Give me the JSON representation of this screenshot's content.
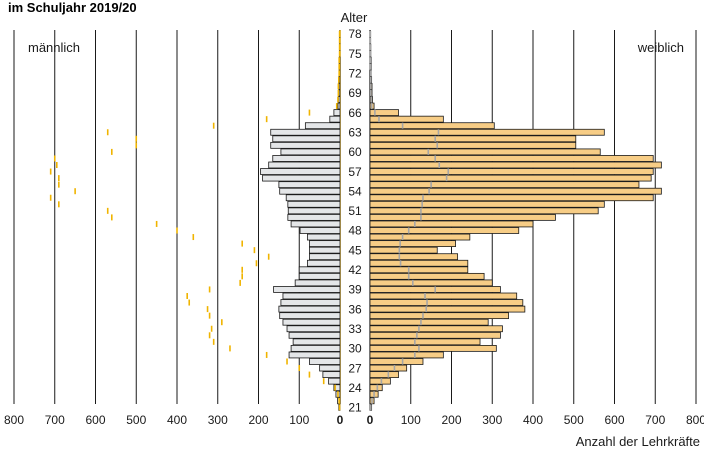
{
  "chart_data": {
    "type": "bar",
    "title": "im Schuljahr 2019/20",
    "center_label": "Alter",
    "xlabel": "Anzahl der Lehrkräfte",
    "legend": {
      "male": "männlich",
      "female": "weiblich"
    },
    "x_ticks_left": [
      "800",
      "700",
      "600",
      "500",
      "400",
      "300",
      "200",
      "100",
      "0"
    ],
    "x_ticks_right": [
      "0",
      "100",
      "200",
      "300",
      "400",
      "500",
      "600",
      "700",
      "800"
    ],
    "xlim": [
      0,
      800
    ],
    "age_range": [
      20,
      78
    ],
    "age_labels": [
      "78",
      "75",
      "72",
      "69",
      "66",
      "63",
      "60",
      "57",
      "54",
      "51",
      "48",
      "45",
      "42",
      "39",
      "36",
      "33",
      "30",
      "27",
      "24",
      "21"
    ],
    "colors": {
      "male_bar": "#e4e6e8",
      "female_bar": "#f7cd86",
      "male_marker": "#f0b400",
      "female_marker": "#a6a6a6",
      "edge": "#1a1a1a"
    },
    "ages": [
      20,
      21,
      22,
      23,
      24,
      25,
      26,
      27,
      28,
      29,
      30,
      31,
      32,
      33,
      34,
      35,
      36,
      37,
      38,
      39,
      40,
      41,
      42,
      43,
      44,
      45,
      46,
      47,
      48,
      49,
      50,
      51,
      52,
      53,
      54,
      55,
      56,
      57,
      58,
      59,
      60,
      61,
      62,
      63,
      64,
      65,
      66,
      67,
      68,
      69,
      70,
      71,
      72,
      73,
      74,
      75,
      76,
      77,
      78
    ],
    "series": [
      {
        "name": "männlich",
        "values": [
          0,
          3,
          6,
          10,
          15,
          28,
          42,
          50,
          75,
          125,
          120,
          115,
          125,
          130,
          140,
          148,
          150,
          145,
          140,
          163,
          110,
          100,
          100,
          80,
          75,
          75,
          75,
          80,
          98,
          120,
          128,
          127,
          128,
          132,
          148,
          150,
          190,
          195,
          175,
          165,
          145,
          170,
          165,
          170,
          85,
          25,
          15,
          5,
          4,
          3,
          3,
          3,
          2,
          2,
          2,
          1,
          1,
          1,
          1
        ]
      },
      {
        "name": "weiblich",
        "values": [
          0,
          4,
          10,
          20,
          30,
          50,
          70,
          90,
          130,
          180,
          310,
          270,
          320,
          325,
          290,
          340,
          380,
          375,
          360,
          320,
          300,
          280,
          240,
          240,
          215,
          165,
          210,
          245,
          365,
          400,
          455,
          560,
          575,
          695,
          715,
          660,
          690,
          695,
          715,
          695,
          565,
          505,
          505,
          575,
          305,
          180,
          70,
          10,
          6,
          5,
          5,
          4,
          3,
          3,
          3,
          2,
          2,
          1,
          1
        ]
      },
      {
        "name": "männlich marker",
        "values": [
          0,
          1,
          2,
          5,
          12,
          40,
          75,
          100,
          130,
          180,
          270,
          310,
          320,
          315,
          290,
          320,
          325,
          370,
          375,
          320,
          245,
          240,
          240,
          205,
          175,
          210,
          240,
          360,
          400,
          450,
          560,
          570,
          690,
          710,
          650,
          690,
          690,
          710,
          695,
          700,
          560,
          500,
          500,
          570,
          310,
          180,
          75,
          8,
          5,
          4,
          4,
          3,
          2,
          2,
          2,
          1,
          1,
          1,
          1
        ]
      },
      {
        "name": "weiblich marker",
        "values": [
          0,
          2,
          5,
          10,
          18,
          28,
          45,
          60,
          80,
          110,
          120,
          110,
          115,
          120,
          125,
          130,
          138,
          140,
          135,
          160,
          105,
          95,
          95,
          75,
          72,
          72,
          74,
          80,
          95,
          110,
          125,
          125,
          128,
          130,
          145,
          150,
          188,
          192,
          170,
          160,
          143,
          165,
          160,
          168,
          80,
          22,
          12,
          4,
          3,
          2,
          2,
          2,
          2,
          1,
          1,
          1,
          1,
          1,
          1
        ]
      }
    ]
  }
}
